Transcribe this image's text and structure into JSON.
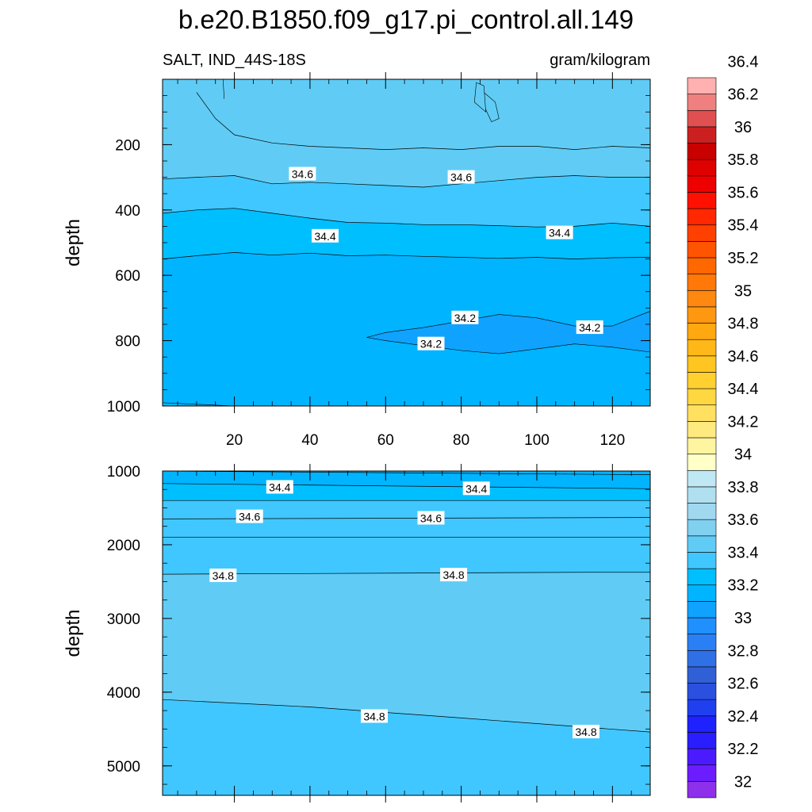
{
  "title": "b.e20.B1850.f09_g17.pi_control.all.149",
  "left_subtitle": "SALT, IND_44S-18S",
  "right_subtitle": "gram/kilogram",
  "chart_data": [
    {
      "type": "contour",
      "panel": "upper",
      "variable": "SALT",
      "region": "IND_44S-18S",
      "units": "gram/kilogram",
      "ylabel": "depth",
      "xlabel": "",
      "xlim": [
        1,
        130
      ],
      "ylim": [
        1000,
        0
      ],
      "x_ticks": [
        20,
        40,
        60,
        80,
        100,
        120
      ],
      "y_ticks": [
        200,
        400,
        600,
        800,
        1000
      ],
      "base_fill_value": 34.2,
      "contour_levels": [
        {
          "value": 34.2,
          "depth_profile": [
            [
              1,
              1000
            ],
            [
              130,
              1000
            ]
          ]
        },
        {
          "value": 34.4,
          "depth_profile": [
            [
              1,
              550
            ],
            [
              10,
              540
            ],
            [
              20,
              530
            ],
            [
              30,
              538
            ],
            [
              40,
              532
            ],
            [
              50,
              540
            ],
            [
              60,
              538
            ],
            [
              70,
              542
            ],
            [
              80,
              545
            ],
            [
              90,
              548
            ],
            [
              100,
              545
            ],
            [
              110,
              550
            ],
            [
              120,
              546
            ],
            [
              130,
              545
            ]
          ]
        },
        {
          "value": 34.6,
          "depth_profile": [
            [
              1,
              410
            ],
            [
              10,
              400
            ],
            [
              20,
              395
            ],
            [
              30,
              410
            ],
            [
              40,
              425
            ],
            [
              50,
              438
            ],
            [
              60,
              440
            ],
            [
              70,
              445
            ],
            [
              80,
              445
            ],
            [
              90,
              448
            ],
            [
              100,
              452
            ],
            [
              110,
              450
            ],
            [
              120,
              440
            ],
            [
              130,
              450
            ]
          ]
        },
        {
          "value": 34.8,
          "depth_profile": [
            [
              1,
              305
            ],
            [
              10,
              300
            ],
            [
              20,
              295
            ],
            [
              30,
              320
            ],
            [
              40,
              315
            ],
            [
              50,
              320
            ],
            [
              60,
              325
            ],
            [
              70,
              330
            ],
            [
              80,
              320
            ],
            [
              90,
              310
            ],
            [
              100,
              300
            ],
            [
              110,
              295
            ],
            [
              120,
              300
            ],
            [
              130,
              300
            ]
          ]
        },
        {
          "value": 35.0,
          "depth_profile": [
            [
              10,
              40
            ],
            [
              15,
              120
            ],
            [
              20,
              170
            ],
            [
              30,
              195
            ],
            [
              40,
              205
            ],
            [
              50,
              210
            ],
            [
              60,
              215
            ],
            [
              70,
              210
            ],
            [
              80,
              215
            ],
            [
              90,
              205
            ],
            [
              100,
              205
            ],
            [
              110,
              215
            ],
            [
              120,
              205
            ],
            [
              130,
              210
            ]
          ]
        }
      ],
      "fresh_pool_34_0": {
        "value": 34.0,
        "upper": [
          [
            55,
            790
          ],
          [
            60,
            775
          ],
          [
            70,
            760
          ],
          [
            80,
            740
          ],
          [
            90,
            720
          ],
          [
            100,
            730
          ],
          [
            110,
            755
          ],
          [
            120,
            755
          ],
          [
            130,
            710
          ]
        ],
        "lower": [
          [
            130,
            835
          ],
          [
            120,
            820
          ],
          [
            110,
            810
          ],
          [
            100,
            825
          ],
          [
            90,
            840
          ],
          [
            80,
            830
          ],
          [
            70,
            815
          ],
          [
            60,
            800
          ]
        ]
      },
      "saline_patch_35_2": {
        "value": 35.2,
        "outline": [
          [
            86,
            40
          ],
          [
            89,
            70
          ],
          [
            90,
            120
          ],
          [
            88,
            130
          ],
          [
            86,
            80
          ]
        ]
      },
      "contour_labels": [
        {
          "text": "34.6",
          "x": 38,
          "y": 290
        },
        {
          "text": "34.6",
          "x": 80,
          "y": 300
        },
        {
          "text": "34.4",
          "x": 44,
          "y": 480
        },
        {
          "text": "34.4",
          "x": 106,
          "y": 470
        },
        {
          "text": "34.2",
          "x": 81,
          "y": 730
        },
        {
          "text": "34.2",
          "x": 72,
          "y": 810
        },
        {
          "text": "34.2",
          "x": 114,
          "y": 760
        }
      ]
    },
    {
      "type": "contour",
      "panel": "lower",
      "variable": "SALT",
      "ylabel": "depth",
      "xlim": [
        1,
        130
      ],
      "ylim": [
        5400,
        1000
      ],
      "x_ticks": [],
      "y_ticks": [
        1000,
        2000,
        3000,
        4000,
        5000
      ],
      "base_fill_value": 34.8,
      "bands": [
        {
          "value": 34.2,
          "from_depth": 1000,
          "to_depth": 1000
        },
        {
          "value": 34.4,
          "from_depth": 1000,
          "to_depth": 1400
        },
        {
          "value": 34.6,
          "from_depth": 1400,
          "to_depth": 1900
        },
        {
          "value": 34.8,
          "from_depth": 1900,
          "to_depth": 2400
        }
      ],
      "contour_levels": [
        {
          "value": 34.2,
          "depth_profile": [
            [
              1,
              1000
            ],
            [
              130,
              1050
            ]
          ]
        },
        {
          "value": 34.4,
          "depth_profile": [
            [
              1,
              1170
            ],
            [
              130,
              1240
            ]
          ]
        },
        {
          "value": 34.4,
          "depth_profile": [
            [
              1,
              1400
            ],
            [
              130,
              1400
            ]
          ]
        },
        {
          "value": 34.6,
          "depth_profile": [
            [
              1,
              1650
            ],
            [
              130,
              1630
            ]
          ]
        },
        {
          "value": 34.6,
          "depth_profile": [
            [
              1,
              1900
            ],
            [
              130,
              1900
            ]
          ]
        },
        {
          "value": 34.8,
          "depth_profile": [
            [
              1,
              2400
            ],
            [
              130,
              2370
            ]
          ]
        },
        {
          "value": 34.8,
          "depth_profile": [
            [
              1,
              4100
            ],
            [
              40,
              4200
            ],
            [
              80,
              4350
            ],
            [
              130,
              4540
            ]
          ]
        }
      ],
      "deep_band": {
        "value": 34.6,
        "upper": [
          [
            1,
            4100
          ],
          [
            40,
            4200
          ],
          [
            80,
            4350
          ],
          [
            130,
            4540
          ]
        ]
      },
      "contour_labels": [
        {
          "text": "34.4",
          "x": 32,
          "y": 1220
        },
        {
          "text": "34.4",
          "x": 84,
          "y": 1240
        },
        {
          "text": "34.6",
          "x": 24,
          "y": 1620
        },
        {
          "text": "34.6",
          "x": 72,
          "y": 1640
        },
        {
          "text": "34.8",
          "x": 17,
          "y": 2420
        },
        {
          "text": "34.8",
          "x": 78,
          "y": 2410
        },
        {
          "text": "34.8",
          "x": 57,
          "y": 4330
        },
        {
          "text": "34.8",
          "x": 113,
          "y": 4540
        }
      ]
    }
  ],
  "colorbar": {
    "colors": [
      "#8e2fec",
      "#6c1dff",
      "#4c1aff",
      "#2a1eff",
      "#1e22ff",
      "#2040ef",
      "#2b50df",
      "#3060d6",
      "#3070e6",
      "#2b7ff5",
      "#2090ff",
      "#10a2ff",
      "#00b4ff",
      "#00bfff",
      "#40c7ff",
      "#60ccf5",
      "#80d0f0",
      "#a0d8f0",
      "#b0e0f0",
      "#c0e8f4",
      "#ffffc8",
      "#fff5a0",
      "#ffea80",
      "#ffe060",
      "#ffd740",
      "#ffd030",
      "#ffc520",
      "#ffb818",
      "#ffa810",
      "#ff9810",
      "#ff8810",
      "#ff7808",
      "#ff6800",
      "#ff5400",
      "#ff4000",
      "#ff2800",
      "#ff1000",
      "#ef0000",
      "#df0000",
      "#c80000",
      "#cc2020",
      "#e05050",
      "#f08080",
      "#ffb0b0"
    ],
    "labels": [
      "32",
      "32.2",
      "32.4",
      "32.6",
      "32.8",
      "33",
      "33.2",
      "33.4",
      "33.6",
      "33.8",
      "34",
      "34.2",
      "34.4",
      "34.6",
      "34.8",
      "35",
      "35.2",
      "35.4",
      "35.6",
      "35.8",
      "36",
      "36.2",
      "36.4"
    ]
  }
}
